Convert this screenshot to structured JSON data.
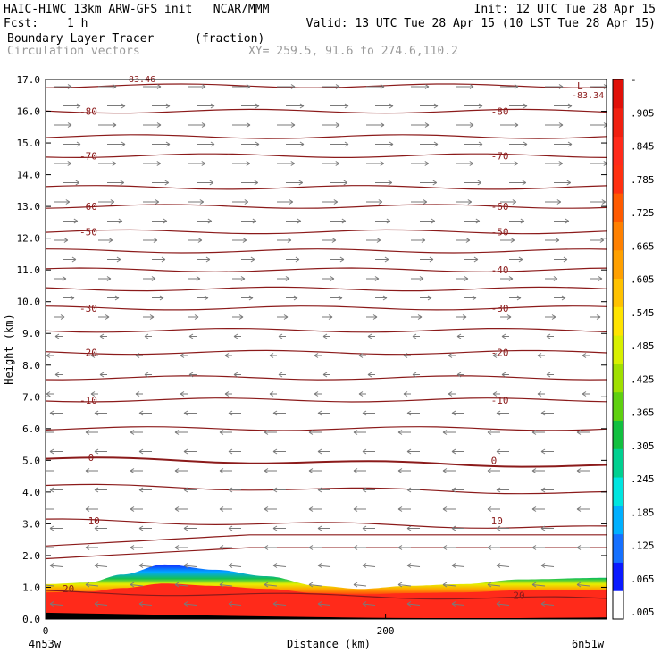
{
  "header": {
    "title_left": "HAIC-HIWC 13km ARW-GFS init   NCAR/MMM",
    "init_text": "Init: 12 UTC Tue 28 Apr 15",
    "fcst_label": "Fcst:",
    "fcst_value": "1 h",
    "valid_text": "Valid: 13 UTC Tue 28 Apr 15 (10 LST Tue 28 Apr 15)",
    "field_name": "Boundary Layer Tracer",
    "field_units": "(fraction)",
    "vector_label": "Circulation vectors",
    "xy_text": "XY= 259.5, 91.6 to 274.6,110.2"
  },
  "colors": {
    "contour": "#8b1a1a",
    "vector": "#7a7a7a",
    "tracer_high": "#ff2a1a",
    "tracer_low": "#1428ff"
  },
  "chart_data": {
    "type": "cross-section",
    "ylabel": "Height (km)",
    "xlabel": "Distance (km)",
    "ylim": [
      0,
      17
    ],
    "yticks": [
      "0.0",
      "1.0",
      "2.0",
      "3.0",
      "4.0",
      "5.0",
      "6.0",
      "7.0",
      "8.0",
      "9.0",
      "10.0",
      "11.0",
      "12.0",
      "13.0",
      "14.0",
      "15.0",
      "16.0",
      "17.0"
    ],
    "xlim": [
      0,
      330
    ],
    "xticks": [
      {
        "x": 0,
        "label": "0"
      },
      {
        "x": 200,
        "label": "200"
      }
    ],
    "x_end_labels": {
      "left": "4n53w",
      "right": "6n51w"
    },
    "temperature_contours": {
      "levels": [
        -80,
        -70,
        -60,
        -50,
        -40,
        -30,
        -20,
        -10,
        0,
        10,
        20
      ],
      "labels": [
        {
          "x": 20,
          "y": 16.0,
          "text": "-80"
        },
        {
          "x": 262,
          "y": 16.0,
          "text": "-80"
        },
        {
          "x": 20,
          "y": 14.6,
          "text": "-70"
        },
        {
          "x": 262,
          "y": 14.6,
          "text": "-70"
        },
        {
          "x": 20,
          "y": 13.0,
          "text": "-60"
        },
        {
          "x": 262,
          "y": 13.0,
          "text": "-60"
        },
        {
          "x": 20,
          "y": 12.2,
          "text": "-50"
        },
        {
          "x": 262,
          "y": 12.2,
          "text": "-50"
        },
        {
          "x": 262,
          "y": 11.0,
          "text": "-40"
        },
        {
          "x": 20,
          "y": 9.8,
          "text": "-30"
        },
        {
          "x": 262,
          "y": 9.8,
          "text": "-30"
        },
        {
          "x": 20,
          "y": 8.4,
          "text": "-20"
        },
        {
          "x": 262,
          "y": 8.4,
          "text": "-20"
        },
        {
          "x": 20,
          "y": 6.9,
          "text": "-10"
        },
        {
          "x": 262,
          "y": 6.9,
          "text": "-10"
        },
        {
          "x": 25,
          "y": 5.1,
          "text": "0"
        },
        {
          "x": 262,
          "y": 5.0,
          "text": "0"
        },
        {
          "x": 25,
          "y": 3.1,
          "text": "10"
        },
        {
          "x": 262,
          "y": 3.1,
          "text": "10"
        },
        {
          "x": 10,
          "y": 0.95,
          "text": "20"
        },
        {
          "x": 275,
          "y": 0.75,
          "text": "20"
        }
      ],
      "min_label": {
        "text": "L",
        "value": "-83.34"
      },
      "top_partial_label": "-83.46"
    },
    "colorbar": {
      "labels": [
        ".005",
        ".065",
        ".125",
        ".185",
        ".245",
        ".305",
        ".365",
        ".425",
        ".485",
        ".545",
        ".605",
        ".665",
        ".725",
        ".785",
        ".845",
        ".905",
        "-"
      ],
      "colors": [
        "#ffffff",
        "#0a1aff",
        "#1570ff",
        "#00b0ff",
        "#00e5e0",
        "#00d090",
        "#12c040",
        "#5fd010",
        "#a0e000",
        "#d8f000",
        "#ffe400",
        "#ffc200",
        "#ffa000",
        "#ff8000",
        "#ff5a00",
        "#ff3010",
        "#ff2a1a",
        "#f02010",
        "#e01008"
      ]
    },
    "tracer_layer": {
      "surface_height_km": 0.2,
      "top_profile": [
        {
          "x": 0,
          "z": 1.1
        },
        {
          "x": 25,
          "z": 1.15
        },
        {
          "x": 45,
          "z": 1.4
        },
        {
          "x": 70,
          "z": 1.72
        },
        {
          "x": 100,
          "z": 1.55
        },
        {
          "x": 130,
          "z": 1.35
        },
        {
          "x": 160,
          "z": 1.05
        },
        {
          "x": 185,
          "z": 0.95
        },
        {
          "x": 215,
          "z": 1.05
        },
        {
          "x": 245,
          "z": 1.1
        },
        {
          "x": 280,
          "z": 1.25
        },
        {
          "x": 330,
          "z": 1.3
        }
      ]
    }
  }
}
